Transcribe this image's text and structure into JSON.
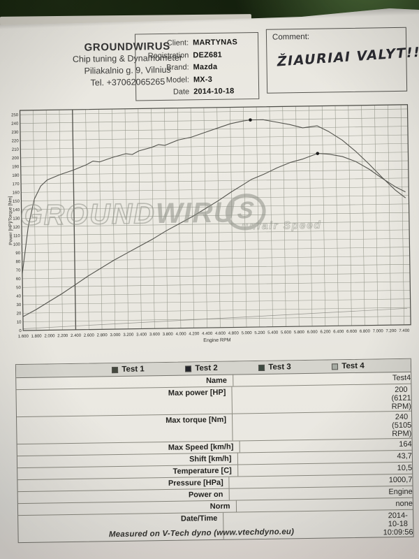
{
  "header": {
    "company": "GROUNDWIRUS",
    "line2": "Chip tuning & Dynamometer",
    "line3": "Piliakalnio g. 9, Vilnius",
    "line4": "Tel. +37062065265"
  },
  "client_box": {
    "rows": [
      {
        "label": "Client:",
        "value": "MARTYNAS"
      },
      {
        "label": "Registration",
        "value": "DEZ681"
      },
      {
        "label": "Brand:",
        "value": "Mazda"
      },
      {
        "label": "Model:",
        "value": "MX-3"
      },
      {
        "label": "Date",
        "value": "2014-10-18"
      }
    ]
  },
  "comment_box": {
    "label": "Comment:",
    "handwritten_text": "ŽIAURIAI VALYT!!!"
  },
  "chart_data": {
    "type": "line",
    "xlabel": "Engine RPM",
    "ylabel": "Power [HP]/Torque [Nm]",
    "xlim": [
      1600,
      7500
    ],
    "ylim": [
      0,
      255
    ],
    "grid": true,
    "xtick_values": [
      1600,
      1800,
      2000,
      2200,
      2400,
      2600,
      2800,
      3000,
      3200,
      3400,
      3600,
      3800,
      4000,
      4200,
      4400,
      4600,
      4800,
      5000,
      5200,
      5400,
      5600,
      5800,
      6000,
      6200,
      6400,
      6600,
      6800,
      7000,
      7200,
      7400
    ],
    "xtick_labels": [
      "1.600",
      "1.800",
      "2.000",
      "2.200",
      "2.400",
      "2.600",
      "2.800",
      "3.000",
      "3.200",
      "3.400",
      "3.600",
      "3.800",
      "4.000",
      "4.200",
      "4.400",
      "4.600",
      "4.800",
      "5.000",
      "5.200",
      "5.400",
      "5.600",
      "5.800",
      "6.000",
      "6.200",
      "6.400",
      "6.600",
      "6.800",
      "7.000",
      "7.200",
      "7.400"
    ],
    "ytick_values": [
      0,
      10,
      20,
      30,
      40,
      50,
      60,
      70,
      80,
      90,
      100,
      110,
      120,
      130,
      140,
      150,
      160,
      170,
      180,
      190,
      200,
      210,
      220,
      230,
      240,
      250
    ],
    "cursor_rpm": 2400,
    "series": [
      {
        "name": "torque_nm",
        "points": [
          [
            1600,
            66
          ],
          [
            1700,
            120
          ],
          [
            1800,
            152
          ],
          [
            1900,
            167
          ],
          [
            2000,
            174
          ],
          [
            2200,
            180
          ],
          [
            2400,
            185
          ],
          [
            2600,
            191
          ],
          [
            2700,
            195
          ],
          [
            2800,
            194
          ],
          [
            3000,
            199
          ],
          [
            3200,
            203
          ],
          [
            3300,
            202
          ],
          [
            3400,
            206
          ],
          [
            3600,
            210
          ],
          [
            3700,
            213
          ],
          [
            3800,
            212
          ],
          [
            4000,
            218
          ],
          [
            4200,
            221
          ],
          [
            4400,
            226
          ],
          [
            4600,
            231
          ],
          [
            4800,
            236
          ],
          [
            5000,
            239
          ],
          [
            5105,
            240
          ],
          [
            5300,
            240
          ],
          [
            5500,
            237
          ],
          [
            5700,
            234
          ],
          [
            5900,
            230
          ],
          [
            6121,
            232
          ],
          [
            6300,
            225
          ],
          [
            6500,
            215
          ],
          [
            6700,
            202
          ],
          [
            6900,
            187
          ],
          [
            7100,
            171
          ],
          [
            7300,
            156
          ],
          [
            7450,
            147
          ]
        ]
      },
      {
        "name": "power_hp",
        "points": [
          [
            1600,
            16
          ],
          [
            1800,
            24
          ],
          [
            2000,
            33
          ],
          [
            2200,
            42
          ],
          [
            2400,
            52
          ],
          [
            2600,
            62
          ],
          [
            2800,
            71
          ],
          [
            3000,
            80
          ],
          [
            3200,
            88
          ],
          [
            3400,
            96
          ],
          [
            3600,
            104
          ],
          [
            3800,
            113
          ],
          [
            4000,
            121
          ],
          [
            4200,
            129
          ],
          [
            4400,
            138
          ],
          [
            4600,
            147
          ],
          [
            4800,
            157
          ],
          [
            5000,
            166
          ],
          [
            5105,
            171
          ],
          [
            5300,
            177
          ],
          [
            5500,
            184
          ],
          [
            5700,
            190
          ],
          [
            5900,
            194
          ],
          [
            6121,
            200
          ],
          [
            6300,
            199
          ],
          [
            6500,
            196
          ],
          [
            6700,
            190
          ],
          [
            6900,
            181
          ],
          [
            7100,
            170
          ],
          [
            7300,
            160
          ],
          [
            7450,
            154
          ]
        ]
      },
      {
        "name": "losses",
        "points": [
          [
            1600,
            2
          ],
          [
            7450,
            19
          ]
        ]
      }
    ],
    "peak_markers": [
      {
        "x": 5105,
        "y": 240
      },
      {
        "x": 6121,
        "y": 200
      }
    ],
    "watermark": {
      "part1": "GROUND",
      "part2": "WIRU",
      "logo_letter": "S",
      "sub": "unfair Speed"
    }
  },
  "table": {
    "legend": [
      {
        "label": "Test 1",
        "color": "#44483e"
      },
      {
        "label": "Test 2",
        "color": "#22242a"
      },
      {
        "label": "Test 3",
        "color": "#3d4a41"
      },
      {
        "label": "Test 4",
        "color": "#a6aba3"
      }
    ],
    "rows": [
      {
        "label": "Name",
        "value": "Test4",
        "value2": ""
      },
      {
        "label": "Max power [HP]",
        "value": "200",
        "value2": "(6121 RPM)"
      },
      {
        "label": "Max torque [Nm]",
        "value": "240",
        "value2": "(5105 RPM)"
      },
      {
        "label": "Max Speed [km/h]",
        "value": "164",
        "value2": ""
      },
      {
        "label": "Shift [km/h]",
        "value": "43,7",
        "value2": ""
      },
      {
        "label": "Temperature [C]",
        "value": "10,5",
        "value2": ""
      },
      {
        "label": "Pressure [HPa]",
        "value": "1000,7",
        "value2": ""
      },
      {
        "label": "Power on",
        "value": "Engine",
        "value2": ""
      },
      {
        "label": "Norm",
        "value": "none",
        "value2": ""
      },
      {
        "label": "Date/Time",
        "value": "2014-10-18",
        "value2": "10:09:56"
      }
    ]
  },
  "footer": {
    "text": "Measured on V-Tech dyno (www.vtechdyno.eu)"
  },
  "colors": {
    "paper": "#e9e7e0",
    "background_green": "#14200d",
    "grid": "#8a8d80",
    "curve": "#54544e",
    "ink": "#2a2a30"
  }
}
